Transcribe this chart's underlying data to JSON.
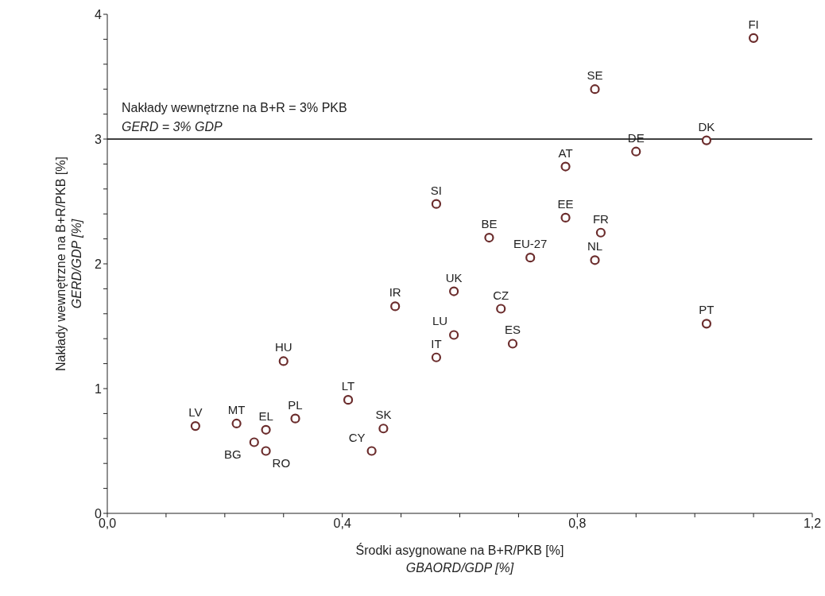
{
  "chart_data": {
    "type": "scatter",
    "xlabel": "Środki asygnowane na B+R/PKB [%]\nGBAORD/GDP [%]",
    "ylabel": "Nakłady wewnętrzne na B+R/PKB [%]\nGERD/GDP [%]",
    "x": [
      0.15,
      0.22,
      0.27,
      0.25,
      0.27,
      0.32,
      0.3,
      0.41,
      0.47,
      0.45,
      0.56,
      0.65,
      0.72,
      0.59,
      0.49,
      0.67,
      0.59,
      0.69,
      0.56,
      0.78,
      0.84,
      0.83,
      1.1,
      0.83,
      1.02,
      0.9,
      0.78,
      1.02
    ],
    "values": [
      0.7,
      0.72,
      0.67,
      0.57,
      0.5,
      0.76,
      1.22,
      0.91,
      0.68,
      0.5,
      2.48,
      2.21,
      2.05,
      1.78,
      1.66,
      1.64,
      1.43,
      1.36,
      1.25,
      2.37,
      2.25,
      2.03,
      3.81,
      3.4,
      2.99,
      2.9,
      2.78,
      1.52
    ],
    "color": "#6b2c2c",
    "marker": "circle",
    "xlim": [
      0,
      1.2
    ],
    "xticks": [
      {
        "value": 0,
        "label": "0,0"
      },
      {
        "value": 0.1,
        "label": null
      },
      {
        "value": 0.2,
        "label": null
      },
      {
        "value": 0.3,
        "label": null
      },
      {
        "value": 0.4,
        "label": "0,4"
      },
      {
        "value": 0.5,
        "label": null
      },
      {
        "value": 0.6,
        "label": null
      },
      {
        "value": 0.7,
        "label": null
      },
      {
        "value": 0.8,
        "label": "0,8"
      },
      {
        "value": 0.9,
        "label": null
      },
      {
        "value": 1.0,
        "label": null
      },
      {
        "value": 1.1,
        "label": null
      },
      {
        "value": 1.2,
        "label": "1,2"
      }
    ],
    "ylim": [
      0,
      4
    ],
    "yticks": [
      0,
      {
        "value": 0.2,
        "label": null
      },
      {
        "value": 0.4,
        "label": null
      },
      {
        "value": 0.6,
        "label": null
      },
      {
        "value": 0.8,
        "label": null
      },
      1,
      {
        "value": 1.2,
        "label": null
      },
      {
        "value": 1.4,
        "label": null
      },
      {
        "value": 1.6,
        "label": null
      },
      {
        "value": 1.8,
        "label": null
      },
      2,
      {
        "value": 2.2,
        "label": null
      },
      {
        "value": 2.4,
        "label": null
      },
      {
        "value": 2.6,
        "label": null
      },
      {
        "value": 2.8,
        "label": null
      },
      3,
      {
        "value": 3.2,
        "label": null
      },
      {
        "value": 3.4,
        "label": null
      },
      {
        "value": 3.6,
        "label": null
      },
      {
        "value": 3.8,
        "label": null
      },
      4
    ],
    "grid": false,
    "ref_lines": [
      {
        "axis": "y",
        "value": 3,
        "label": "Nakłady wewnętrzne na B+R = 3% PKB\nGERD = 3% GDP",
        "color": "#000000"
      }
    ],
    "annotations": [
      {
        "text": "LV",
        "x": 0.15,
        "y": 0.7
      },
      {
        "text": "MT",
        "x": 0.22,
        "y": 0.72
      },
      {
        "text": "EL",
        "x": 0.27,
        "y": 0.67
      },
      {
        "text": "BG",
        "x": 0.25,
        "y": 0.57
      },
      {
        "text": "RO",
        "x": 0.27,
        "y": 0.5
      },
      {
        "text": "PL",
        "x": 0.32,
        "y": 0.76
      },
      {
        "text": "HU",
        "x": 0.3,
        "y": 1.22
      },
      {
        "text": "LT",
        "x": 0.41,
        "y": 0.91
      },
      {
        "text": "SK",
        "x": 0.47,
        "y": 0.68
      },
      {
        "text": "CY",
        "x": 0.45,
        "y": 0.5
      },
      {
        "text": "SI",
        "x": 0.56,
        "y": 2.48
      },
      {
        "text": "BE",
        "x": 0.65,
        "y": 2.21
      },
      {
        "text": "EU-27",
        "x": 0.72,
        "y": 2.05
      },
      {
        "text": "UK",
        "x": 0.59,
        "y": 1.78
      },
      {
        "text": "IR",
        "x": 0.49,
        "y": 1.66
      },
      {
        "text": "CZ",
        "x": 0.67,
        "y": 1.64
      },
      {
        "text": "LU",
        "x": 0.59,
        "y": 1.43
      },
      {
        "text": "ES",
        "x": 0.69,
        "y": 1.36
      },
      {
        "text": "IT",
        "x": 0.56,
        "y": 1.25
      },
      {
        "text": "EE",
        "x": 0.78,
        "y": 2.37
      },
      {
        "text": "FR",
        "x": 0.84,
        "y": 2.25
      },
      {
        "text": "NL",
        "x": 0.83,
        "y": 2.03
      },
      {
        "text": "FI",
        "x": 1.1,
        "y": 3.81
      },
      {
        "text": "SE",
        "x": 0.83,
        "y": 3.4
      },
      {
        "text": "DK",
        "x": 1.02,
        "y": 2.99
      },
      {
        "text": "DE",
        "x": 0.9,
        "y": 2.9
      },
      {
        "text": "AT",
        "x": 0.78,
        "y": 2.78
      },
      {
        "text": "PT",
        "x": 1.02,
        "y": 1.52
      }
    ]
  }
}
